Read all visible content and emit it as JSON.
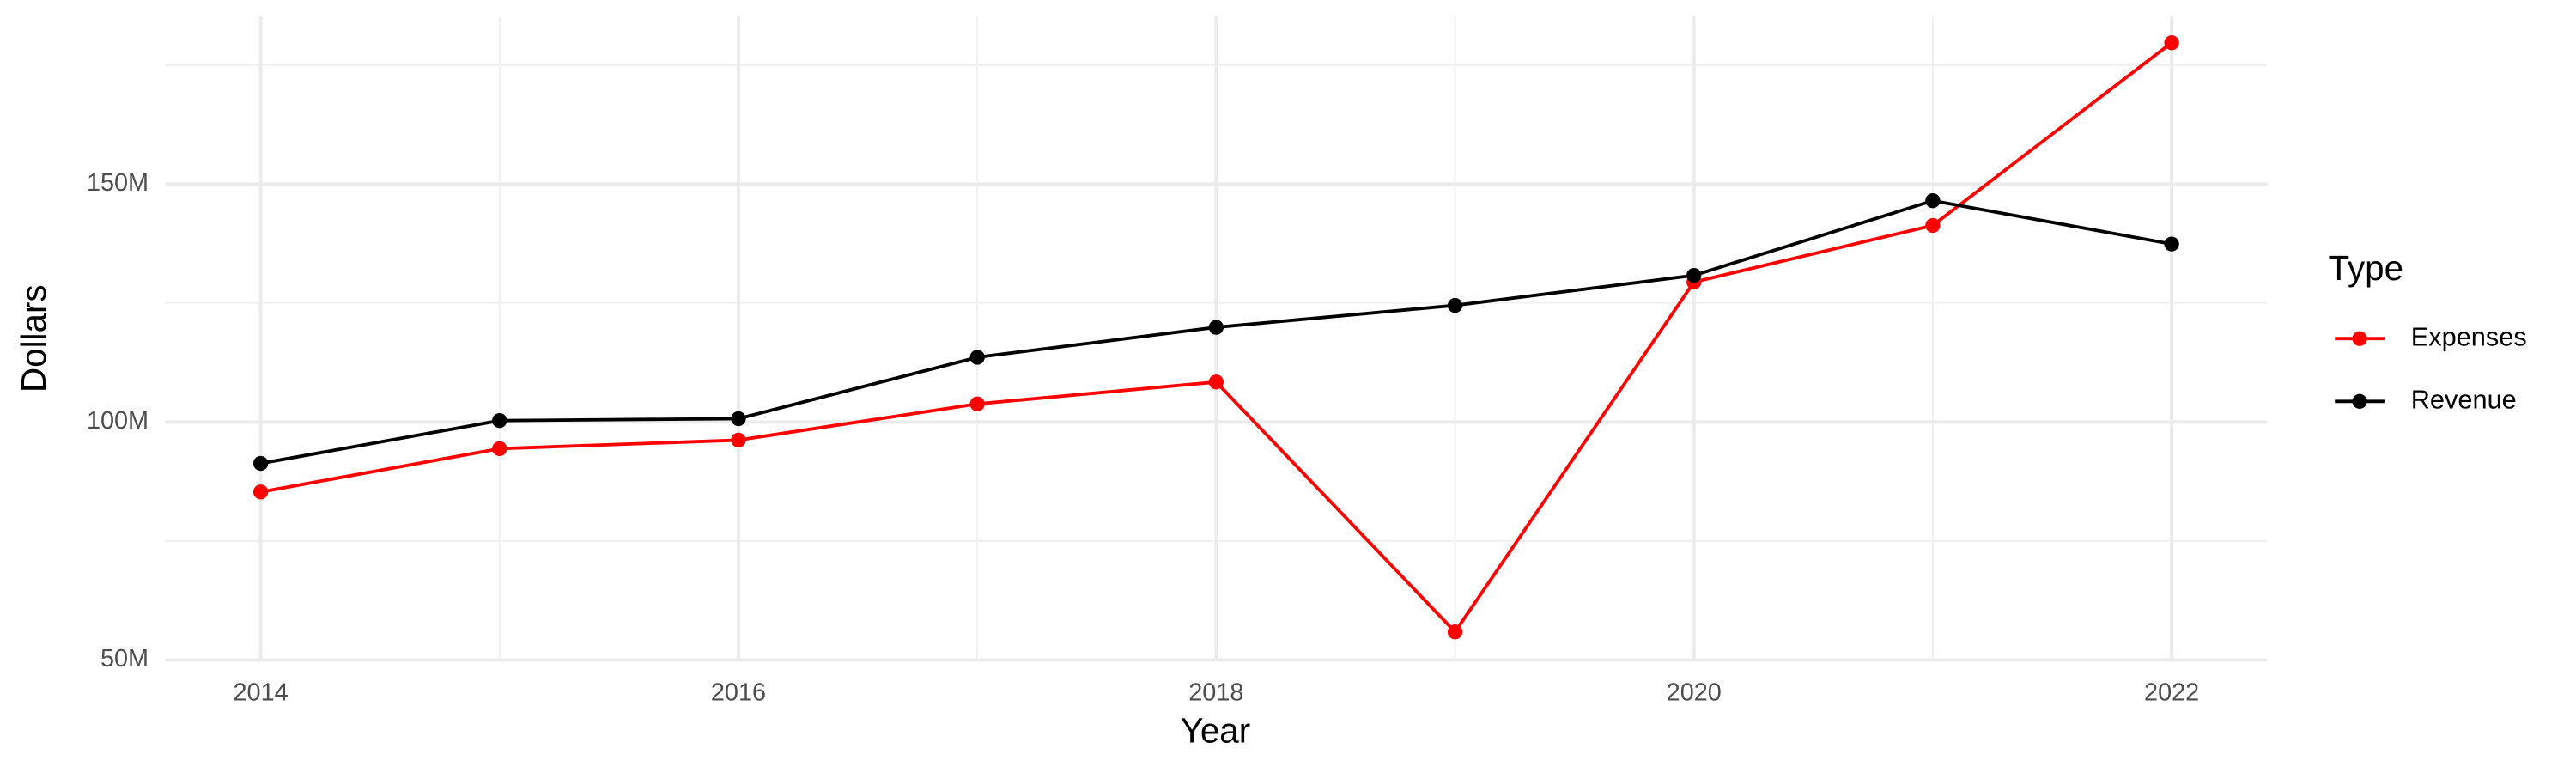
{
  "chart_data": {
    "type": "line",
    "x_label": "Year",
    "y_label": "Dollars",
    "legend_title": "Type",
    "x": [
      2014,
      2015,
      2016,
      2017,
      2018,
      2019,
      2020,
      2021,
      2022
    ],
    "series": [
      {
        "name": "Expenses",
        "color": "#ff0000",
        "values": [
          85300000,
          94400000,
          96200000,
          103800000,
          108400000,
          55900000,
          129400000,
          141300000,
          179700000
        ]
      },
      {
        "name": "Revenue",
        "color": "#000000",
        "values": [
          91300000,
          100300000,
          100700000,
          113600000,
          119900000,
          124500000,
          130800000,
          146500000,
          137400000
        ]
      }
    ],
    "xlim": [
      2013.6,
      2022.4
    ],
    "xticks": [
      2014,
      2016,
      2018,
      2020,
      2022
    ],
    "minor_xticks": [
      2015,
      2017,
      2019,
      2021
    ],
    "ylim": [
      49850000,
      185200000
    ],
    "yticks": [
      {
        "value": 50000000,
        "label": "50M"
      },
      {
        "value": 100000000,
        "label": "100M"
      },
      {
        "value": 150000000,
        "label": "150M"
      }
    ],
    "minor_yticks": [
      75000000,
      125000000,
      175000000
    ],
    "grid": true,
    "legend": "right"
  }
}
